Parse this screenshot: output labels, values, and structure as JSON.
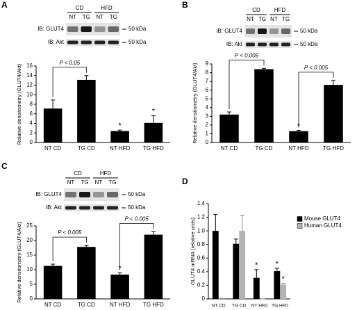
{
  "chart_data": [
    {
      "type": "bar",
      "panel": "A",
      "ylabel": "Relative densitometry (GLUT4/Akt)",
      "categories": [
        "NT CD",
        "TG CD",
        "NT HFD",
        "TG HFD"
      ],
      "values": [
        7.1,
        13.1,
        2.4,
        4.1
      ],
      "errors": [
        1.8,
        0.9,
        0.2,
        1.5
      ],
      "color": "#000000",
      "ylim": [
        0,
        16
      ],
      "yticks": [
        0,
        2,
        4,
        6,
        8,
        10,
        12,
        14,
        16
      ],
      "stars": [
        null,
        null,
        "*",
        "*"
      ],
      "brackets": [
        {
          "label": "P < 0.05",
          "from": "NT CD",
          "to": "TG CD"
        }
      ],
      "blot": {
        "groups": [
          "CD",
          "HFD"
        ],
        "lanes": [
          "NT",
          "TG",
          "NT",
          "TG"
        ],
        "rows": [
          "IB: GLUT4",
          "IB: Akt"
        ],
        "markers": [
          "50 kDa",
          "50 kDa"
        ]
      }
    },
    {
      "type": "bar",
      "panel": "B",
      "ylabel": "Relative densitometry (GLUT4/Akt)",
      "categories": [
        "NT CD",
        "TG CD",
        "NT HFD",
        "TG HFD"
      ],
      "values": [
        3.2,
        8.4,
        1.3,
        6.6
      ],
      "errors": [
        0.3,
        0.1,
        0.1,
        0.5
      ],
      "color": "#000000",
      "ylim": [
        0,
        9
      ],
      "yticks": [
        0,
        1,
        2,
        3,
        4,
        5,
        6,
        7,
        8,
        9
      ],
      "stars": [
        null,
        null,
        "*",
        null
      ],
      "brackets": [
        {
          "label": "P < 0.005",
          "from": "NT CD",
          "to": "TG CD"
        },
        {
          "label": "P < 0.005",
          "from": "NT HFD",
          "to": "TG HFD"
        }
      ],
      "blot": {
        "groups": [
          "CD",
          "HFD"
        ],
        "lanes": [
          "NT",
          "TG",
          "NT",
          "TG"
        ],
        "rows": [
          "IB: GLUT4",
          "IB: Akt"
        ],
        "markers": [
          "50 kDa",
          "50 kDa"
        ]
      }
    },
    {
      "type": "bar",
      "panel": "C",
      "ylabel": "Relative densitometry (GLUT4/Akt)",
      "categories": [
        "NT CD",
        "TG CD",
        "NT HFD",
        "TG HFD"
      ],
      "values": [
        11.3,
        17.8,
        8.3,
        22
      ],
      "errors": [
        0.6,
        0.5,
        0.6,
        1.0
      ],
      "color": "#000000",
      "ylim": [
        0,
        25
      ],
      "yticks": [
        0,
        5,
        10,
        15,
        20,
        25
      ],
      "stars": [
        null,
        null,
        "*",
        null
      ],
      "brackets": [
        {
          "label": "P < 0.005",
          "from": "NT CD",
          "to": "TG CD"
        },
        {
          "label": "P < 0.005",
          "from": "NT HFD",
          "to": "TG HFD"
        }
      ],
      "blot": {
        "groups": [
          "CD",
          "HFD"
        ],
        "lanes": [
          "NT",
          "TG",
          "NT",
          "TG"
        ],
        "rows": [
          "IB: GLUT4",
          "IB: Akt"
        ],
        "markers": [
          "50 kDa",
          "50 kDa"
        ]
      }
    },
    {
      "type": "grouped-bar",
      "panel": "D",
      "ylabel": "GLUT4 mRNA (relative units)",
      "categories": [
        "NT CD",
        "TG CD",
        "NT HFD",
        "TG HFD"
      ],
      "series": [
        {
          "name": "Mouse GLUT4",
          "color": "#000000",
          "values": [
            1.0,
            0.81,
            0.31,
            0.41
          ],
          "errors": [
            0.24,
            0.07,
            0.12,
            0.04
          ],
          "stars": [
            null,
            null,
            "*",
            "*"
          ]
        },
        {
          "name": "Human GLUT4",
          "color": "#b3b3b3",
          "values": [
            0.01,
            1.0,
            0,
            0.21
          ],
          "errors": [
            0,
            0.23,
            0,
            0.02
          ],
          "stars": [
            null,
            null,
            null,
            "*"
          ]
        }
      ],
      "ylim": [
        0,
        1.4
      ],
      "yticks": [
        0,
        0.2,
        0.4,
        0.6,
        0.8,
        {
          "value": 1,
          "label": "1.0"
        },
        1.2,
        1.4
      ],
      "legend": "upper right"
    }
  ]
}
